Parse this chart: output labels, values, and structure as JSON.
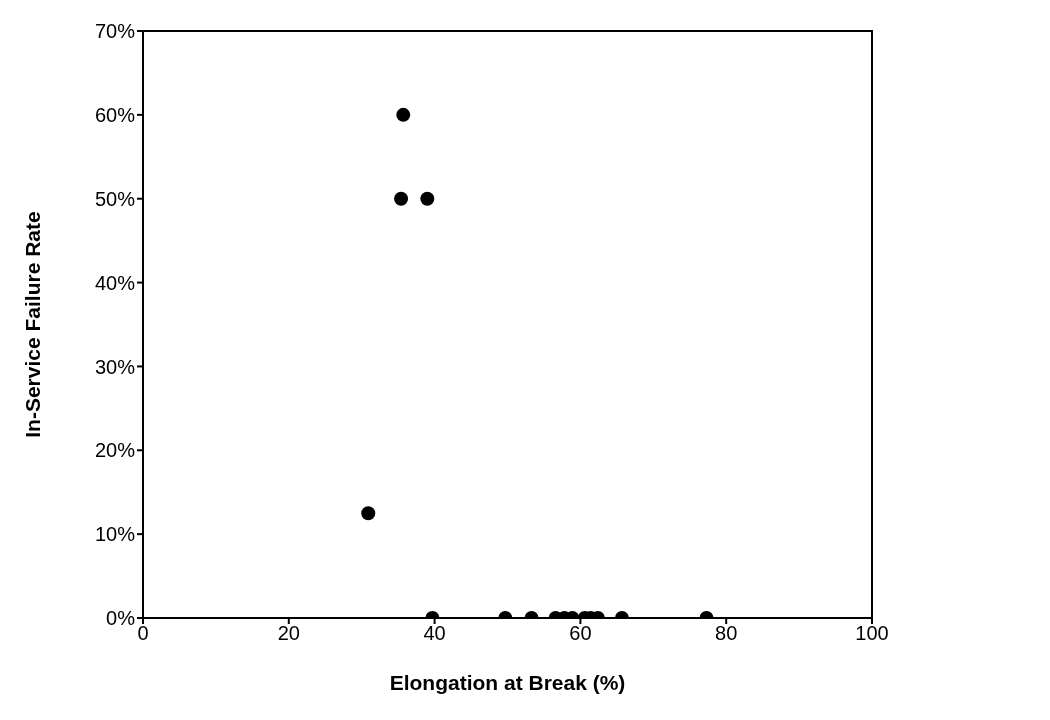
{
  "chart_data": {
    "type": "scatter",
    "xlabel": "Elongation at Break (%)",
    "ylabel": "In-Service Failure Rate",
    "x": [
      30.9,
      35.7,
      35.4,
      39.0,
      39.7,
      49.7,
      53.3,
      56.6,
      57.8,
      58.9,
      60.6,
      61.4,
      62.4,
      65.7,
      77.3
    ],
    "values": [
      12.5,
      60,
      50,
      50,
      0,
      0,
      0,
      0,
      0,
      0,
      0,
      0,
      0,
      0,
      0
    ],
    "color": "#000000",
    "marker": "circle",
    "xlim": [
      0,
      100
    ],
    "xticks": [
      0,
      20,
      40,
      60,
      80,
      100
    ],
    "ylim": [
      0,
      70
    ],
    "yticks": [
      {
        "value": 0,
        "label": "0%"
      },
      {
        "value": 10,
        "label": "10%"
      },
      {
        "value": 20,
        "label": "20%"
      },
      {
        "value": 30,
        "label": "30%"
      },
      {
        "value": 40,
        "label": "40%"
      },
      {
        "value": 50,
        "label": "50%"
      },
      {
        "value": 60,
        "label": "60%"
      },
      {
        "value": 70,
        "label": "70%"
      }
    ],
    "grid": false,
    "legend": false
  }
}
